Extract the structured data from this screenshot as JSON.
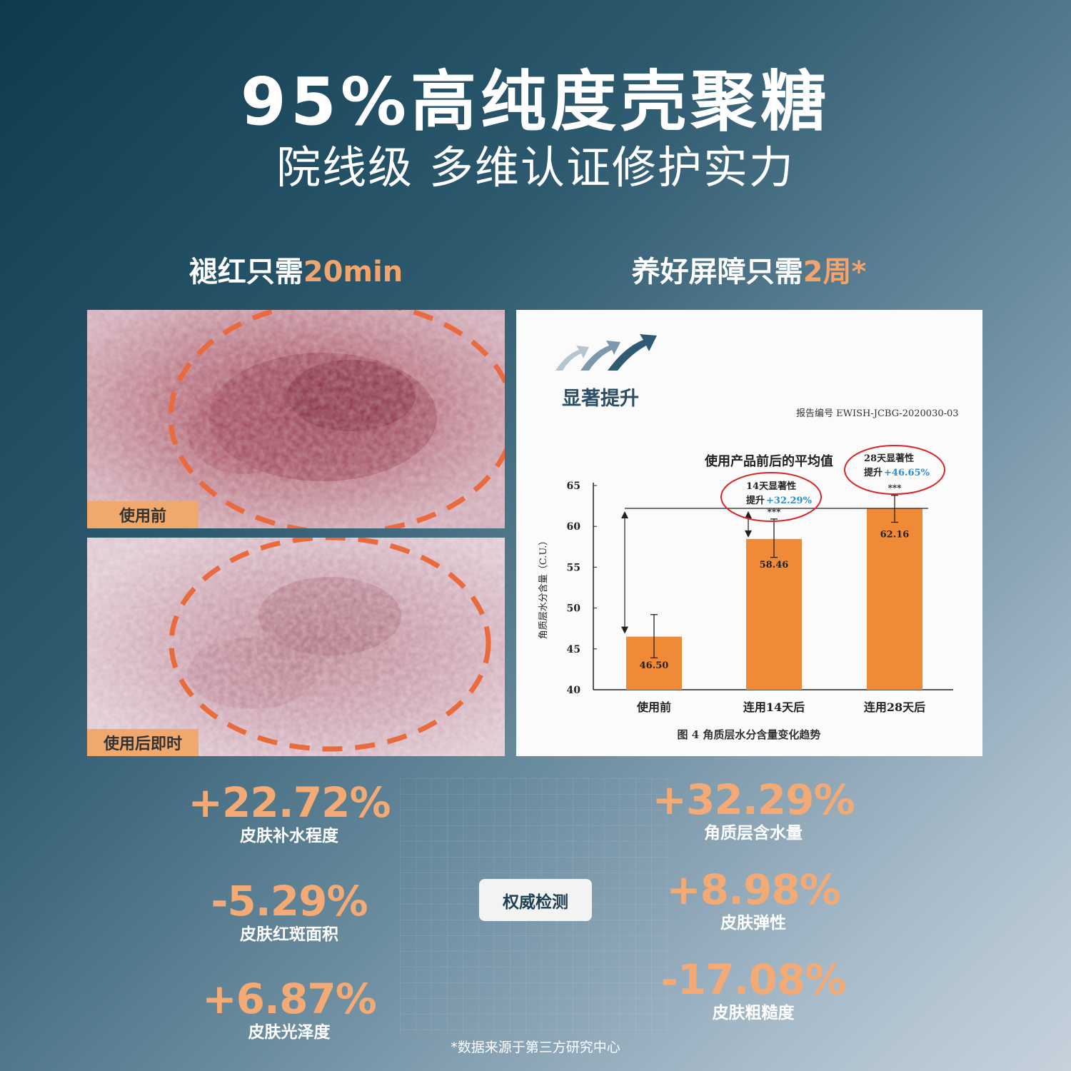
{
  "header": {
    "title": "95%高纯度壳聚糖",
    "subtitle": "院线级 多维认证修护实力"
  },
  "left_section": {
    "heading_prefix": "褪红只需",
    "heading_accent": "20min",
    "photo_before_label": "使用前",
    "photo_after_label": "使用后即时"
  },
  "right_section": {
    "heading_prefix": "养好屏障只需",
    "heading_accent": "2周*"
  },
  "report": {
    "heading": "显著提升",
    "report_no": "报告编号 EWISH-JCBG-2020030-03",
    "caption": "图 4   角质层水分含量变化趋势",
    "accent_color": "#f08a36"
  },
  "chart_data": {
    "type": "bar",
    "title": "使用产品前后的平均值",
    "ylabel": "角质层水分含量（C.U.）",
    "categories": [
      "使用前",
      "连用14天后",
      "连用28天后"
    ],
    "values": [
      46.5,
      58.46,
      62.16
    ],
    "value_labels": [
      "46.50",
      "58.46",
      "62.16"
    ],
    "error_high": [
      49.2,
      60.9,
      63.8
    ],
    "error_low": [
      43.9,
      56.2,
      60.5
    ],
    "significance": [
      "",
      "***",
      "***"
    ],
    "ylim": [
      40,
      65
    ],
    "yticks": [
      "40",
      "45",
      "50",
      "55",
      "60",
      "65"
    ],
    "annotations": [
      {
        "text": "14天显著性",
        "text2": "提升",
        "pct": "+32.29%"
      },
      {
        "text": "28天显著性",
        "text2": "提升",
        "pct": "+46.65%"
      }
    ]
  },
  "stats_left": [
    {
      "value": "+22.72%",
      "label": "皮肤补水程度"
    },
    {
      "value": "-5.29%",
      "label": "皮肤红斑面积"
    },
    {
      "value": "+6.87%",
      "label": "皮肤光泽度"
    }
  ],
  "stats_right": [
    {
      "value": "+32.29%",
      "label": "角质层含水量"
    },
    {
      "value": "+8.98%",
      "label": "皮肤弹性"
    },
    {
      "value": "-17.08%",
      "label": "皮肤粗糙度"
    }
  ],
  "badge": "权威检测",
  "footnote": "*数据来源于第三方研究中心"
}
